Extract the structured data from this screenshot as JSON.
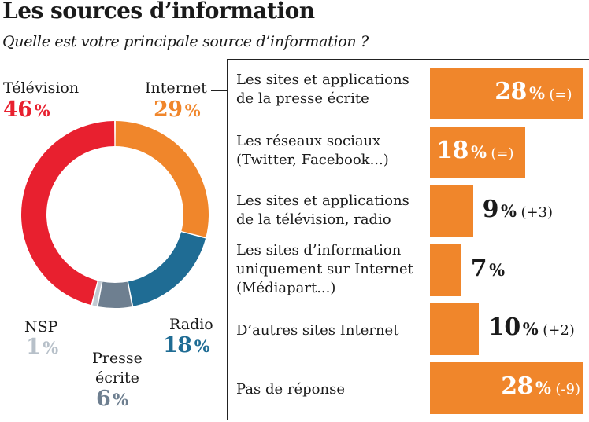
{
  "header": {
    "title": "Les sources d’information",
    "subtitle": "Quelle est votre principale source d’information ?"
  },
  "colors": {
    "television": "#e8202f",
    "internet": "#f0862b",
    "radio": "#1f6c94",
    "presse": "#6e7f90",
    "nsp": "#c2cad2"
  },
  "chart_data": [
    {
      "type": "pie",
      "style": "donut",
      "title": "",
      "slices": [
        {
          "label": "Internet",
          "value": 29,
          "pct_text": "29",
          "sign": "%",
          "color": "#f0862b"
        },
        {
          "label": "Radio",
          "value": 18,
          "pct_text": "18",
          "sign": "%",
          "color": "#1f6c94"
        },
        {
          "label_line1": "Presse",
          "label_line2": "écrite",
          "value": 6,
          "pct_text": "6",
          "sign": "%",
          "color": "#6e7f90"
        },
        {
          "label": "NSP",
          "value": 1,
          "pct_text": "1",
          "sign": "%",
          "color": "#c2cad2"
        },
        {
          "label": "Télévision",
          "value": 46,
          "pct_text": "46",
          "sign": "%",
          "color": "#e8202f"
        }
      ]
    },
    {
      "type": "bar",
      "orientation": "horizontal",
      "title": "",
      "categories": [
        [
          "Les sites et applications",
          "de la presse écrite"
        ],
        [
          "Les réseaux sociaux",
          "(Twitter, Facebook...)"
        ],
        [
          "Les sites et applications",
          "de la télévision, radio"
        ],
        [
          "Les sites d’information",
          "uniquement sur Internet",
          "(Médiapart...)"
        ],
        [
          "D’autres sites Internet"
        ],
        [
          "Pas de réponse"
        ]
      ],
      "values": [
        28,
        18,
        9,
        7,
        10,
        28
      ],
      "value_text": [
        "28",
        "18",
        "9",
        "7",
        "10",
        "28"
      ],
      "sign": "%",
      "changes": [
        "(=)",
        "(=)",
        "(+3)",
        "",
        "(+2)",
        "(-9)"
      ],
      "color": "#f0862b"
    }
  ]
}
